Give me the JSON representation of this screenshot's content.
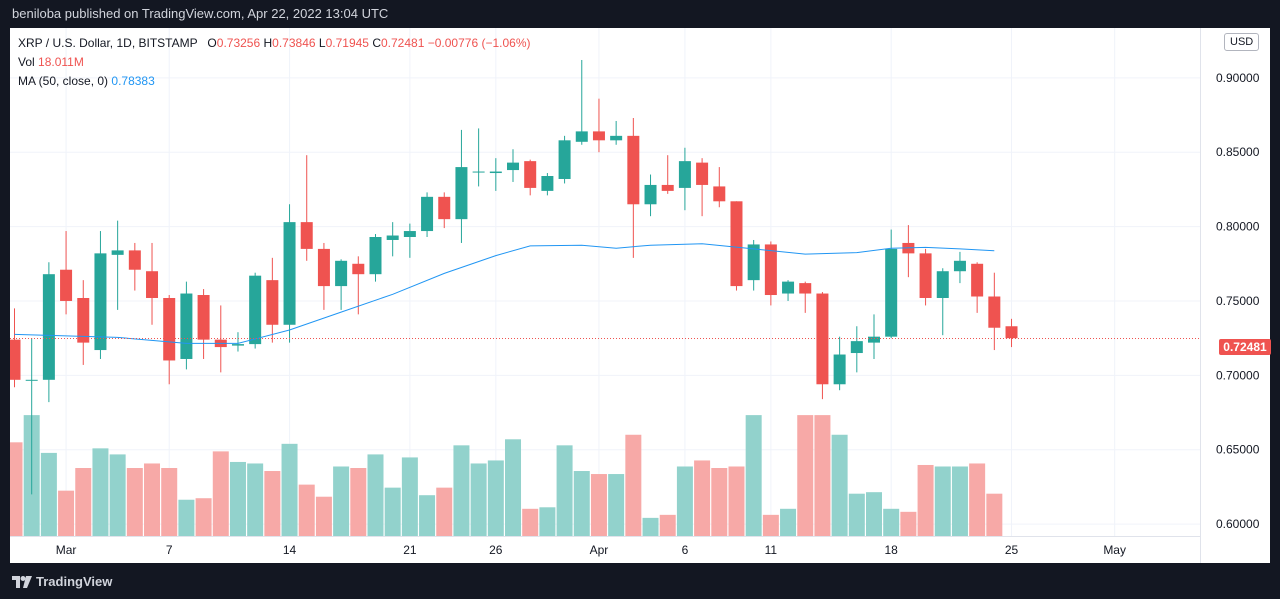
{
  "header": {
    "published_text": "beniloba published on TradingView.com, Apr 22, 2022 13:04 UTC"
  },
  "footer": {
    "logo_text": "TradingView"
  },
  "legend": {
    "symbol": "XRP / U.S. Dollar, 1D, BITSTAMP",
    "open_label": "O",
    "open": "0.73256",
    "high_label": "H",
    "high": "0.73846",
    "low_label": "L",
    "low": "0.71945",
    "close_label": "C",
    "close": "0.72481",
    "change": "−0.00776 (−1.06%)",
    "vol_label": "Vol",
    "vol": "18.011M",
    "ma_label": "MA (50, close, 0)",
    "ma": "0.78383"
  },
  "currency_button": "USD",
  "last_price_tag": "0.72481",
  "colors": {
    "up": "#26a69a",
    "down": "#ef5350",
    "ma": "#2196f3",
    "vol_up": "#92d2cc",
    "vol_down": "#f7a9a7"
  },
  "chart_data": {
    "type": "candlestick",
    "y_ticks": [
      "0.60000",
      "0.65000",
      "0.70000",
      "0.75000",
      "0.80000",
      "0.85000",
      "0.90000"
    ],
    "ylim": [
      0.592,
      0.9335
    ],
    "x_ticks": [
      {
        "i": 3,
        "label": "Mar"
      },
      {
        "i": 9,
        "label": "7"
      },
      {
        "i": 16,
        "label": "14"
      },
      {
        "i": 23,
        "label": "21"
      },
      {
        "i": 28,
        "label": "26"
      },
      {
        "i": 34,
        "label": "Apr"
      },
      {
        "i": 39,
        "label": "6"
      },
      {
        "i": 44,
        "label": "11"
      },
      {
        "i": 51,
        "label": "18"
      },
      {
        "i": 58,
        "label": "25"
      },
      {
        "i": 64,
        "label": "May"
      }
    ],
    "candles": [
      {
        "o": 0.724,
        "h": 0.745,
        "l": 0.692,
        "c": 0.697
      },
      {
        "o": 0.697,
        "h": 0.725,
        "l": 0.62,
        "c": 0.697
      },
      {
        "o": 0.697,
        "h": 0.776,
        "l": 0.682,
        "c": 0.768
      },
      {
        "o": 0.771,
        "h": 0.797,
        "l": 0.741,
        "c": 0.75
      },
      {
        "o": 0.752,
        "h": 0.764,
        "l": 0.707,
        "c": 0.722
      },
      {
        "o": 0.717,
        "h": 0.797,
        "l": 0.711,
        "c": 0.782
      },
      {
        "o": 0.781,
        "h": 0.804,
        "l": 0.744,
        "c": 0.784
      },
      {
        "o": 0.784,
        "h": 0.789,
        "l": 0.757,
        "c": 0.771
      },
      {
        "o": 0.77,
        "h": 0.789,
        "l": 0.734,
        "c": 0.752
      },
      {
        "o": 0.752,
        "h": 0.754,
        "l": 0.694,
        "c": 0.71
      },
      {
        "o": 0.711,
        "h": 0.763,
        "l": 0.704,
        "c": 0.755
      },
      {
        "o": 0.754,
        "h": 0.758,
        "l": 0.711,
        "c": 0.724
      },
      {
        "o": 0.724,
        "h": 0.747,
        "l": 0.702,
        "c": 0.719
      },
      {
        "o": 0.72,
        "h": 0.729,
        "l": 0.716,
        "c": 0.721
      },
      {
        "o": 0.721,
        "h": 0.769,
        "l": 0.718,
        "c": 0.767
      },
      {
        "o": 0.764,
        "h": 0.779,
        "l": 0.722,
        "c": 0.734
      },
      {
        "o": 0.734,
        "h": 0.815,
        "l": 0.722,
        "c": 0.803
      },
      {
        "o": 0.803,
        "h": 0.848,
        "l": 0.777,
        "c": 0.785
      },
      {
        "o": 0.785,
        "h": 0.789,
        "l": 0.744,
        "c": 0.76
      },
      {
        "o": 0.76,
        "h": 0.778,
        "l": 0.744,
        "c": 0.777
      },
      {
        "o": 0.775,
        "h": 0.78,
        "l": 0.741,
        "c": 0.768
      },
      {
        "o": 0.768,
        "h": 0.795,
        "l": 0.763,
        "c": 0.793
      },
      {
        "o": 0.791,
        "h": 0.803,
        "l": 0.78,
        "c": 0.794
      },
      {
        "o": 0.793,
        "h": 0.802,
        "l": 0.779,
        "c": 0.797
      },
      {
        "o": 0.797,
        "h": 0.823,
        "l": 0.793,
        "c": 0.82
      },
      {
        "o": 0.82,
        "h": 0.823,
        "l": 0.799,
        "c": 0.805
      },
      {
        "o": 0.805,
        "h": 0.865,
        "l": 0.789,
        "c": 0.84
      },
      {
        "o": 0.837,
        "h": 0.866,
        "l": 0.827,
        "c": 0.837
      },
      {
        "o": 0.836,
        "h": 0.846,
        "l": 0.824,
        "c": 0.837
      },
      {
        "o": 0.838,
        "h": 0.852,
        "l": 0.83,
        "c": 0.843
      },
      {
        "o": 0.844,
        "h": 0.845,
        "l": 0.821,
        "c": 0.826
      },
      {
        "o": 0.824,
        "h": 0.836,
        "l": 0.821,
        "c": 0.834
      },
      {
        "o": 0.832,
        "h": 0.861,
        "l": 0.829,
        "c": 0.858
      },
      {
        "o": 0.857,
        "h": 0.912,
        "l": 0.855,
        "c": 0.864
      },
      {
        "o": 0.864,
        "h": 0.886,
        "l": 0.85,
        "c": 0.858
      },
      {
        "o": 0.858,
        "h": 0.871,
        "l": 0.855,
        "c": 0.861
      },
      {
        "o": 0.861,
        "h": 0.873,
        "l": 0.779,
        "c": 0.815
      },
      {
        "o": 0.815,
        "h": 0.835,
        "l": 0.807,
        "c": 0.828
      },
      {
        "o": 0.828,
        "h": 0.848,
        "l": 0.822,
        "c": 0.824
      },
      {
        "o": 0.826,
        "h": 0.853,
        "l": 0.811,
        "c": 0.844
      },
      {
        "o": 0.843,
        "h": 0.846,
        "l": 0.807,
        "c": 0.828
      },
      {
        "o": 0.827,
        "h": 0.84,
        "l": 0.813,
        "c": 0.817
      },
      {
        "o": 0.817,
        "h": 0.817,
        "l": 0.757,
        "c": 0.76
      },
      {
        "o": 0.764,
        "h": 0.791,
        "l": 0.757,
        "c": 0.788
      },
      {
        "o": 0.788,
        "h": 0.79,
        "l": 0.747,
        "c": 0.754
      },
      {
        "o": 0.755,
        "h": 0.764,
        "l": 0.75,
        "c": 0.763
      },
      {
        "o": 0.762,
        "h": 0.763,
        "l": 0.742,
        "c": 0.755
      },
      {
        "o": 0.755,
        "h": 0.756,
        "l": 0.684,
        "c": 0.694
      },
      {
        "o": 0.694,
        "h": 0.726,
        "l": 0.69,
        "c": 0.714
      },
      {
        "o": 0.715,
        "h": 0.733,
        "l": 0.702,
        "c": 0.723
      },
      {
        "o": 0.722,
        "h": 0.741,
        "l": 0.711,
        "c": 0.726
      },
      {
        "o": 0.726,
        "h": 0.798,
        "l": 0.725,
        "c": 0.785
      },
      {
        "o": 0.789,
        "h": 0.801,
        "l": 0.766,
        "c": 0.782
      },
      {
        "o": 0.782,
        "h": 0.785,
        "l": 0.747,
        "c": 0.752
      },
      {
        "o": 0.752,
        "h": 0.772,
        "l": 0.727,
        "c": 0.77
      },
      {
        "o": 0.77,
        "h": 0.783,
        "l": 0.762,
        "c": 0.777
      },
      {
        "o": 0.775,
        "h": 0.776,
        "l": 0.742,
        "c": 0.753
      },
      {
        "o": 0.753,
        "h": 0.769,
        "l": 0.717,
        "c": 0.732
      },
      {
        "o": 0.733,
        "h": 0.738,
        "l": 0.719,
        "c": 0.725
      }
    ],
    "volume_ymax": 9.0,
    "volumes": [
      6.2,
      8.0,
      5.5,
      3.0,
      4.5,
      5.8,
      5.4,
      4.5,
      4.8,
      4.5,
      2.4,
      2.5,
      5.6,
      4.9,
      4.8,
      4.3,
      6.1,
      3.4,
      2.6,
      4.6,
      4.5,
      5.4,
      3.2,
      5.2,
      2.7,
      3.2,
      6.0,
      4.8,
      5.0,
      6.4,
      1.8,
      1.9,
      6.0,
      4.3,
      4.1,
      4.1,
      6.7,
      1.2,
      1.4,
      4.6,
      5.0,
      4.5,
      4.6,
      8.0,
      1.4,
      1.8,
      8.0,
      8.0,
      6.7,
      2.8,
      2.9,
      1.8,
      1.6,
      4.7,
      4.6,
      4.6,
      4.8,
      2.8
    ],
    "ma_points": [
      [
        0,
        0.7275
      ],
      [
        6,
        0.7255
      ],
      [
        10,
        0.7215
      ],
      [
        13,
        0.7215
      ],
      [
        16,
        0.7305
      ],
      [
        19,
        0.7425
      ],
      [
        22,
        0.7545
      ],
      [
        25,
        0.7685
      ],
      [
        28,
        0.7805
      ],
      [
        30,
        0.787
      ],
      [
        33,
        0.7875
      ],
      [
        35,
        0.7855
      ],
      [
        37,
        0.7875
      ],
      [
        40,
        0.7885
      ],
      [
        43,
        0.785
      ],
      [
        46,
        0.7815
      ],
      [
        49,
        0.7825
      ],
      [
        51,
        0.7855
      ],
      [
        53,
        0.786
      ],
      [
        55,
        0.785
      ],
      [
        57,
        0.7838
      ]
    ]
  }
}
